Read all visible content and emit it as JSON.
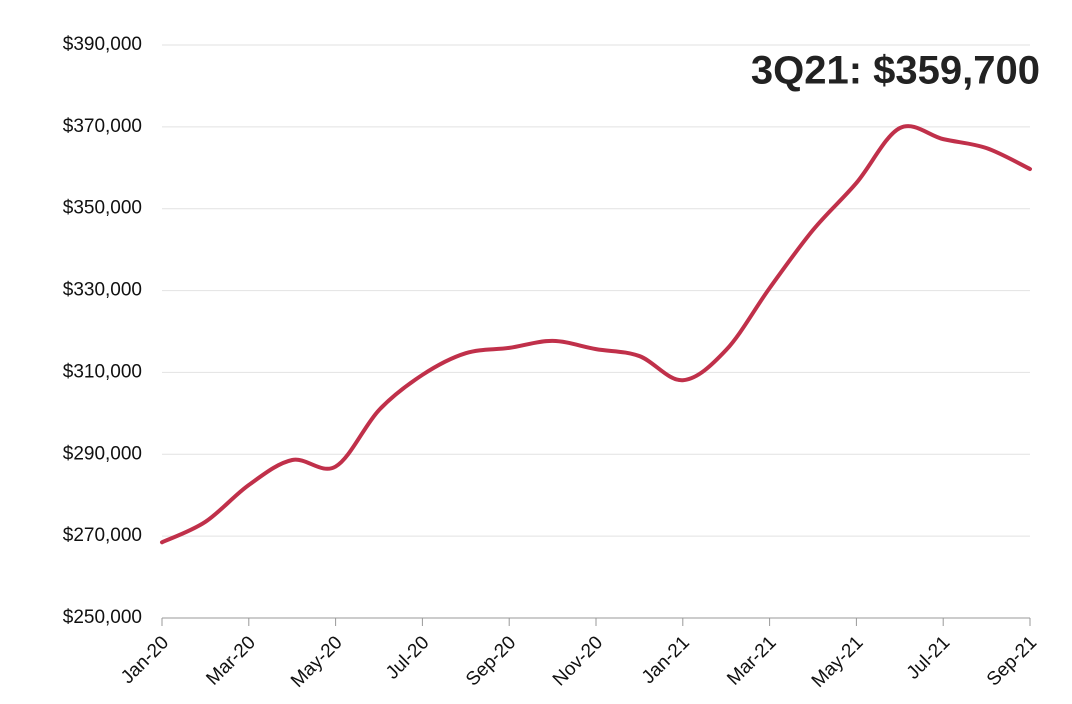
{
  "chart_data": {
    "type": "line",
    "annotation": "3Q21: $359,700",
    "categories": [
      "Jan-20",
      null,
      "Mar-20",
      null,
      "May-20",
      null,
      "Jul-20",
      null,
      "Sep-20",
      null,
      "Nov-20",
      null,
      "Jan-21",
      null,
      "Mar-21",
      null,
      "May-21",
      null,
      "Jul-21",
      null,
      "Sep-21"
    ],
    "series": [
      {
        "color": "#c0304a",
        "values": [
          268500,
          273500,
          282500,
          288600,
          287000,
          300800,
          309400,
          314700,
          316000,
          317700,
          315700,
          314000,
          308100,
          315500,
          330600,
          344800,
          356300,
          369700,
          367000,
          364800,
          359700
        ]
      }
    ],
    "ylim": [
      250000,
      390000
    ],
    "yticks": [
      {
        "value": 250000,
        "label": "$250,000"
      },
      {
        "value": 270000,
        "label": "$270,000"
      },
      {
        "value": 290000,
        "label": "$290,000"
      },
      {
        "value": 310000,
        "label": "$310,000"
      },
      {
        "value": 330000,
        "label": "$330,000"
      },
      {
        "value": 350000,
        "label": "$350,000"
      },
      {
        "value": 370000,
        "label": "$370,000"
      },
      {
        "value": 390000,
        "label": "$390,000"
      }
    ],
    "grid": true
  }
}
